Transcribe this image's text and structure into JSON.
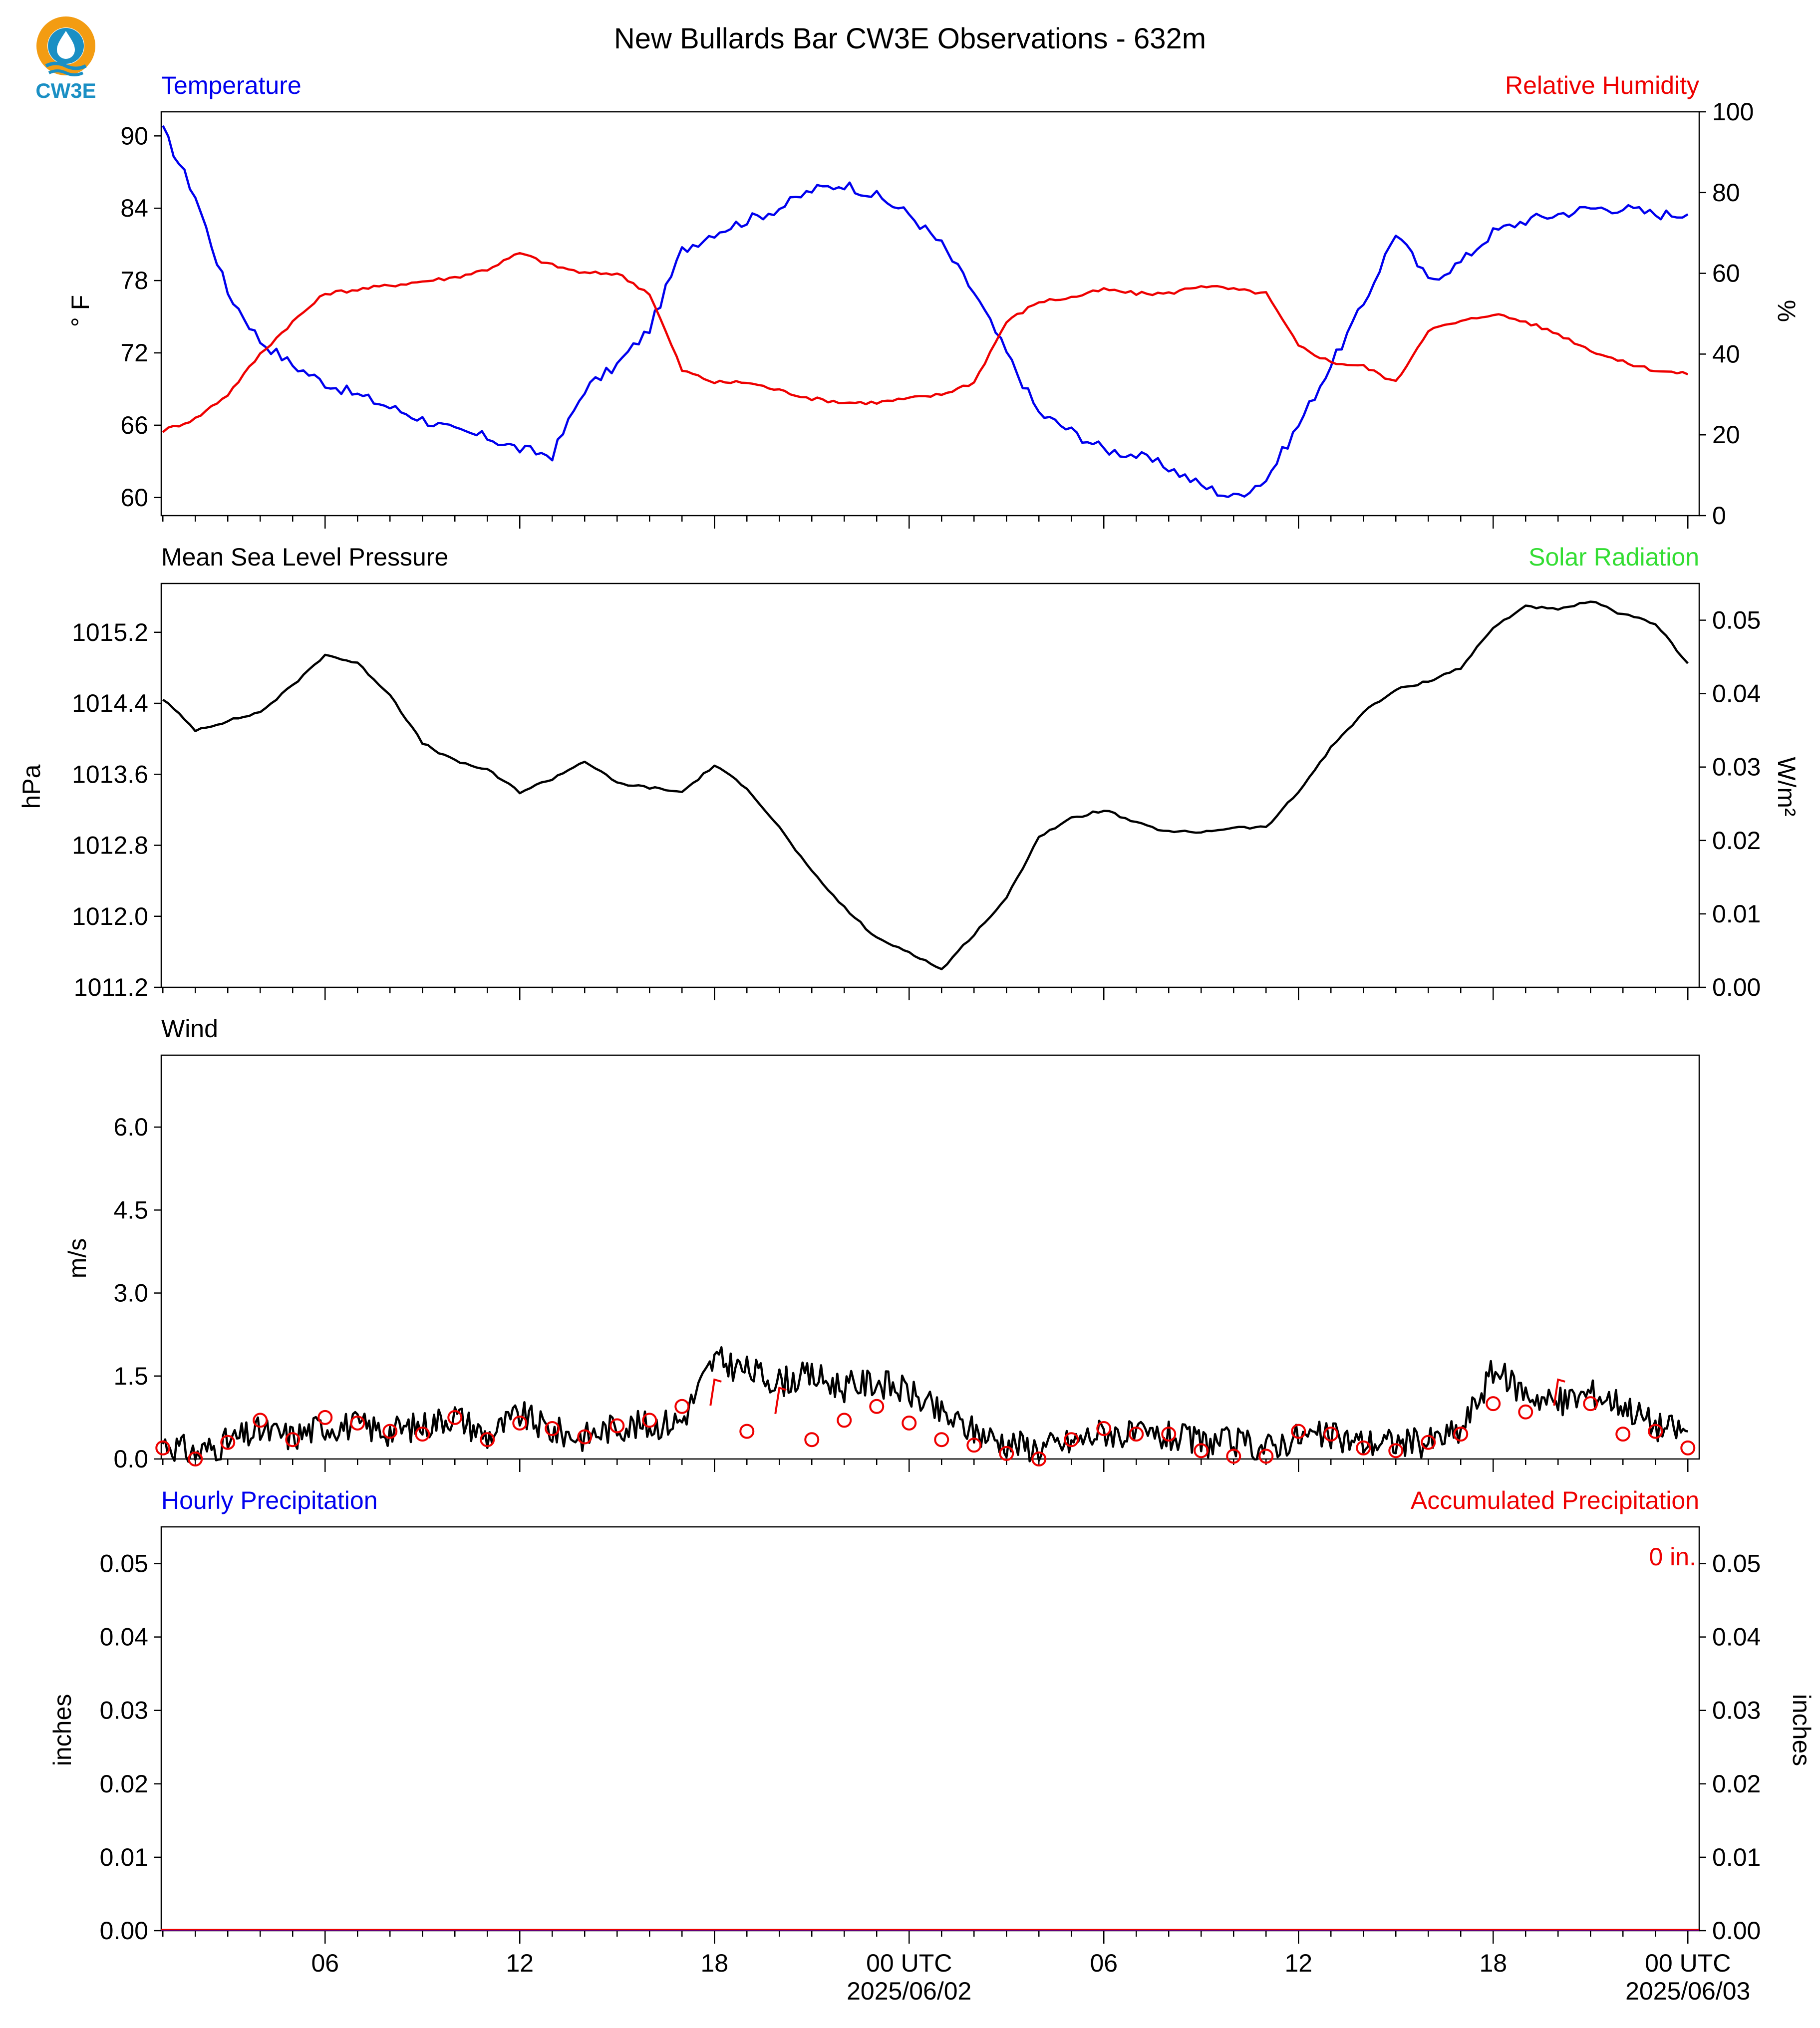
{
  "title": "New Bullards Bar CW3E Observations - 632m",
  "logo": {
    "text": "CW3E",
    "colors": {
      "ring": "#f39c12",
      "drop": "#1a8fc4",
      "text": "#1a8fc4"
    }
  },
  "colors": {
    "blue": "#0000ee",
    "red": "#ee0000",
    "green": "#33dd33",
    "black": "#000000"
  },
  "x_axis": {
    "start_hour": 1,
    "end_hour": 48,
    "major_ticks": [
      {
        "hour": 6,
        "label": "06"
      },
      {
        "hour": 12,
        "label": "12"
      },
      {
        "hour": 18,
        "label": "18"
      },
      {
        "hour": 24,
        "label": "00 UTC",
        "date": "2025/06/02"
      },
      {
        "hour": 30,
        "label": "06"
      },
      {
        "hour": 36,
        "label": "12"
      },
      {
        "hour": 42,
        "label": "18"
      },
      {
        "hour": 48,
        "label": "00 UTC",
        "date": "2025/06/03"
      }
    ]
  },
  "chart_data": [
    {
      "type": "line",
      "left_title": "Temperature",
      "right_title": "Relative Humidity",
      "ylabel": "° F",
      "ylabel_right": "%",
      "ylim": [
        58.5,
        92
      ],
      "ylim_right": [
        0,
        100
      ],
      "yticks": [
        "60",
        "66",
        "72",
        "78",
        "84",
        "90"
      ],
      "yticks_right": [
        "0",
        "20",
        "40",
        "60",
        "80",
        "100"
      ],
      "x_hours": [
        1,
        2,
        3,
        4,
        5,
        6,
        7,
        8,
        9,
        10,
        11,
        12,
        13,
        14,
        15,
        16,
        17,
        18,
        19,
        20,
        21,
        22,
        23,
        24,
        25,
        26,
        27,
        28,
        29,
        30,
        31,
        32,
        33,
        34,
        35,
        36,
        37,
        38,
        39,
        40,
        41,
        42,
        43,
        44,
        45,
        46,
        47,
        48
      ],
      "series": [
        {
          "name": "Temperature",
          "axis": "left",
          "color": "#0000ee",
          "values": [
            90.5,
            85,
            77,
            73,
            71,
            69.5,
            68.5,
            67.5,
            66.5,
            65.5,
            65,
            64,
            63.5,
            69,
            71,
            74,
            80.5,
            82,
            83,
            84,
            85.5,
            86,
            85,
            83.5,
            81,
            77,
            72,
            67,
            65.5,
            64,
            63.5,
            62.5,
            61,
            60,
            61.5,
            66,
            71,
            76,
            82,
            78,
            79.5,
            82,
            83,
            83.5,
            84,
            84,
            83.5,
            83.5
          ]
        },
        {
          "name": "Relative Humidity",
          "axis": "right",
          "color": "#ee0000",
          "values": [
            21,
            24,
            30,
            40,
            48,
            55,
            56,
            57,
            58,
            59,
            61,
            65,
            62,
            60,
            60,
            55,
            36,
            33,
            33,
            31,
            29,
            28,
            28,
            29,
            30,
            33,
            48,
            53,
            54,
            56,
            55,
            55,
            57,
            56,
            55,
            42,
            38,
            37,
            33,
            46,
            48,
            50,
            48,
            45,
            41,
            38,
            36,
            35
          ]
        }
      ]
    },
    {
      "type": "line",
      "left_title": "Mean Sea Level Pressure",
      "right_title": "Solar Radiation",
      "ylabel": "hPa",
      "ylabel_right": "W/m²",
      "ylim": [
        1011.2,
        1015.75
      ],
      "ylim_right": [
        0,
        0.055
      ],
      "yticks": [
        "1011.2",
        "1012.0",
        "1012.8",
        "1013.6",
        "1014.4",
        "1015.2"
      ],
      "yticks_right": [
        "0.00",
        "0.01",
        "0.02",
        "0.03",
        "0.04",
        "0.05"
      ],
      "x_hours": [
        1,
        2,
        3,
        4,
        5,
        6,
        7,
        8,
        9,
        10,
        11,
        12,
        13,
        14,
        15,
        16,
        17,
        18,
        19,
        20,
        21,
        22,
        23,
        24,
        25,
        26,
        27,
        28,
        29,
        30,
        31,
        32,
        33,
        34,
        35,
        36,
        37,
        38,
        39,
        40,
        41,
        42,
        43,
        44,
        45,
        46,
        47,
        48
      ],
      "series": [
        {
          "name": "Mean Sea Level Pressure",
          "axis": "left",
          "color": "#000000",
          "values": [
            1014.45,
            1014.1,
            1014.2,
            1014.3,
            1014.6,
            1014.95,
            1014.85,
            1014.5,
            1013.95,
            1013.75,
            1013.65,
            1013.4,
            1013.55,
            1013.75,
            1013.5,
            1013.45,
            1013.4,
            1013.7,
            1013.45,
            1013.0,
            1012.5,
            1012.1,
            1011.75,
            1011.6,
            1011.4,
            1011.8,
            1012.2,
            1012.9,
            1013.1,
            1013.2,
            1013.05,
            1012.95,
            1012.95,
            1013.0,
            1013.0,
            1013.4,
            1013.9,
            1014.3,
            1014.55,
            1014.65,
            1014.8,
            1015.25,
            1015.5,
            1015.45,
            1015.55,
            1015.4,
            1015.3,
            1014.85
          ]
        }
      ]
    },
    {
      "type": "line",
      "left_title": "Wind",
      "ylabel": "m/s",
      "ylim": [
        0,
        7.3
      ],
      "yticks": [
        "0.0",
        "1.5",
        "3.0",
        "4.5",
        "6.0"
      ],
      "x_hours": [
        1,
        2,
        3,
        4,
        5,
        6,
        7,
        8,
        9,
        10,
        11,
        12,
        13,
        14,
        15,
        16,
        17,
        18,
        19,
        20,
        21,
        22,
        23,
        24,
        25,
        26,
        27,
        28,
        29,
        30,
        31,
        32,
        33,
        34,
        35,
        36,
        37,
        38,
        39,
        40,
        41,
        42,
        43,
        44,
        45,
        46,
        47,
        48
      ],
      "series": [
        {
          "name": "Wind speed",
          "axis": "left",
          "color": "#000000",
          "values": [
            0.3,
            0.1,
            0.3,
            0.5,
            0.4,
            0.6,
            0.6,
            0.5,
            0.6,
            0.8,
            0.4,
            0.8,
            0.5,
            0.4,
            0.6,
            0.6,
            0.7,
            1.8,
            1.6,
            1.4,
            1.5,
            1.3,
            1.4,
            1.2,
            0.8,
            0.5,
            0.3,
            0.2,
            0.3,
            0.5,
            0.4,
            0.4,
            0.3,
            0.3,
            0.2,
            0.4,
            0.4,
            0.3,
            0.3,
            0.3,
            0.5,
            1.6,
            1.2,
            1.0,
            1.2,
            1.0,
            0.6,
            0.5
          ]
        }
      ],
      "barb_markers": [
        0.2,
        0.0,
        0.3,
        0.7,
        0.35,
        0.75,
        0.65,
        0.5,
        0.45,
        0.75,
        0.35,
        0.65,
        0.55,
        0.4,
        0.6,
        0.7,
        0.95,
        1.2,
        0.5,
        1.05,
        0.35,
        0.7,
        0.95,
        0.65,
        0.35,
        0.25,
        0.1,
        0.0,
        0.35,
        0.55,
        0.45,
        0.45,
        0.15,
        0.05,
        0.05,
        0.5,
        0.45,
        0.2,
        0.15,
        0.3,
        0.45,
        1.0,
        0.85,
        1.2,
        1.0,
        0.45,
        0.5,
        0.2
      ]
    },
    {
      "type": "line",
      "left_title": "Hourly Precipitation",
      "right_title": "Accumulated Precipitation",
      "ylabel": "inches",
      "ylabel_right": "inches",
      "ylim": [
        0,
        0.055
      ],
      "ylim_right": [
        0,
        0.055
      ],
      "yticks": [
        "0.00",
        "0.01",
        "0.02",
        "0.03",
        "0.04",
        "0.05"
      ],
      "yticks_right": [
        "0.00",
        "0.01",
        "0.02",
        "0.03",
        "0.04",
        "0.05"
      ],
      "annotation": "0 in.",
      "series": [
        {
          "name": "Hourly Precipitation",
          "axis": "left",
          "color": "#0000ee",
          "values": [
            0,
            0
          ]
        },
        {
          "name": "Accumulated Precipitation",
          "axis": "right",
          "color": "#ee0000",
          "values": [
            0,
            0
          ]
        }
      ]
    }
  ]
}
